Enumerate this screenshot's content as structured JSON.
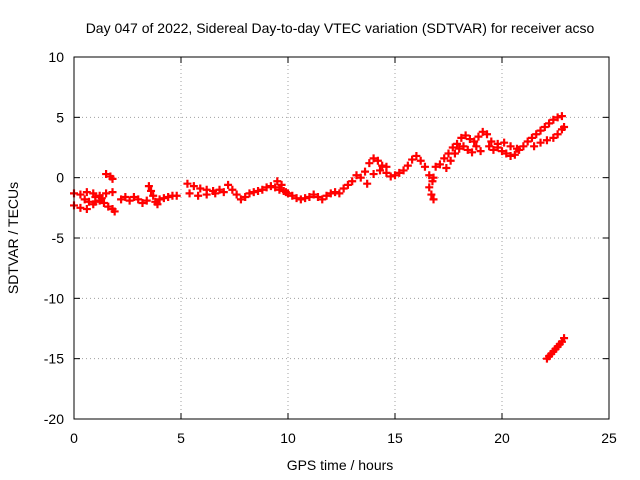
{
  "chart_data": {
    "type": "scatter",
    "title": "Day 047 of 2022, Sidereal Day-to-day VTEC variation (SDTVAR) for receiver acso",
    "xlabel": "GPS time / hours",
    "ylabel": "SDTVAR / TECUs",
    "xlim": [
      0,
      25
    ],
    "ylim": [
      -20,
      10
    ],
    "xticks": [
      0,
      5,
      10,
      15,
      20,
      25
    ],
    "yticks": [
      -20,
      -15,
      -10,
      -5,
      0,
      5,
      10
    ],
    "xtick_labels": [
      "0",
      "5",
      "10",
      "15",
      "20",
      "25"
    ],
    "ytick_labels": [
      "-20",
      "-15",
      "-10",
      "-5",
      "0",
      "5",
      "10"
    ],
    "grid": true,
    "marker": "+",
    "series": [
      {
        "name": "SDTVAR",
        "color": "#ff0000",
        "points": [
          [
            0.0,
            -1.3
          ],
          [
            0.3,
            -1.4
          ],
          [
            0.6,
            -1.2
          ],
          [
            0.9,
            -1.3
          ],
          [
            1.2,
            -1.5
          ],
          [
            1.5,
            -1.3
          ],
          [
            1.8,
            -1.2
          ],
          [
            0.0,
            -2.3
          ],
          [
            0.3,
            -2.5
          ],
          [
            0.6,
            -2.6
          ],
          [
            0.9,
            -2.2
          ],
          [
            1.0,
            -2.0
          ],
          [
            1.2,
            -1.9
          ],
          [
            1.4,
            -2.1
          ],
          [
            1.6,
            -2.4
          ],
          [
            1.8,
            -2.6
          ],
          [
            1.9,
            -2.8
          ],
          [
            0.5,
            -1.8
          ],
          [
            0.7,
            -2.0
          ],
          [
            1.0,
            -1.6
          ],
          [
            1.3,
            -1.7
          ],
          [
            1.5,
            0.3
          ],
          [
            1.7,
            0.1
          ],
          [
            1.8,
            -0.1
          ],
          [
            2.2,
            -1.8
          ],
          [
            2.4,
            -1.6
          ],
          [
            2.6,
            -1.9
          ],
          [
            2.8,
            -1.6
          ],
          [
            3.0,
            -1.8
          ],
          [
            3.2,
            -2.1
          ],
          [
            3.4,
            -1.9
          ],
          [
            3.5,
            -0.7
          ],
          [
            3.6,
            -1.1
          ],
          [
            3.7,
            -1.5
          ],
          [
            3.8,
            -2.0
          ],
          [
            3.9,
            -2.2
          ],
          [
            4.0,
            -1.8
          ],
          [
            4.2,
            -1.7
          ],
          [
            4.4,
            -1.6
          ],
          [
            4.6,
            -1.5
          ],
          [
            4.8,
            -1.5
          ],
          [
            5.3,
            -0.5
          ],
          [
            5.6,
            -0.7
          ],
          [
            5.9,
            -0.9
          ],
          [
            6.2,
            -1.0
          ],
          [
            6.5,
            -1.1
          ],
          [
            6.8,
            -1.0
          ],
          [
            7.0,
            -1.2
          ],
          [
            5.4,
            -1.3
          ],
          [
            5.8,
            -1.5
          ],
          [
            6.2,
            -1.4
          ],
          [
            6.6,
            -1.3
          ],
          [
            7.2,
            -0.6
          ],
          [
            7.4,
            -1.0
          ],
          [
            7.6,
            -1.4
          ],
          [
            7.8,
            -1.8
          ],
          [
            8.0,
            -1.6
          ],
          [
            8.2,
            -1.3
          ],
          [
            8.4,
            -1.2
          ],
          [
            8.6,
            -1.1
          ],
          [
            8.8,
            -1.0
          ],
          [
            9.0,
            -0.8
          ],
          [
            9.2,
            -0.7
          ],
          [
            9.4,
            -0.8
          ],
          [
            9.6,
            -1.0
          ],
          [
            9.8,
            -1.1
          ],
          [
            10.0,
            -1.3
          ],
          [
            10.2,
            -1.5
          ],
          [
            10.4,
            -1.7
          ],
          [
            10.6,
            -1.8
          ],
          [
            10.8,
            -1.7
          ],
          [
            11.0,
            -1.6
          ],
          [
            9.5,
            -0.3
          ],
          [
            9.7,
            -0.6
          ],
          [
            9.9,
            -1.2
          ],
          [
            11.2,
            -1.4
          ],
          [
            11.4,
            -1.6
          ],
          [
            11.6,
            -1.8
          ],
          [
            11.8,
            -1.5
          ],
          [
            12.0,
            -1.3
          ],
          [
            12.2,
            -1.2
          ],
          [
            12.4,
            -1.3
          ],
          [
            12.6,
            -0.9
          ],
          [
            12.8,
            -0.6
          ],
          [
            13.0,
            -0.3
          ],
          [
            13.2,
            0.2
          ],
          [
            13.4,
            0.0
          ],
          [
            13.6,
            0.5
          ],
          [
            13.8,
            1.2
          ],
          [
            14.0,
            1.6
          ],
          [
            14.2,
            1.4
          ],
          [
            14.4,
            1.0
          ],
          [
            14.6,
            0.4
          ],
          [
            14.8,
            0.1
          ],
          [
            13.7,
            -0.5
          ],
          [
            14.0,
            0.3
          ],
          [
            14.3,
            0.6
          ],
          [
            14.6,
            0.9
          ],
          [
            15.0,
            0.2
          ],
          [
            15.2,
            0.4
          ],
          [
            15.4,
            0.6
          ],
          [
            15.6,
            1.0
          ],
          [
            15.8,
            1.5
          ],
          [
            16.0,
            1.8
          ],
          [
            16.2,
            1.4
          ],
          [
            16.4,
            0.9
          ],
          [
            16.6,
            0.2
          ],
          [
            16.8,
            0.0
          ],
          [
            16.6,
            -0.8
          ],
          [
            16.7,
            -1.4
          ],
          [
            16.8,
            -1.8
          ],
          [
            16.75,
            -0.3
          ],
          [
            16.9,
            0.9
          ],
          [
            17.1,
            1.1
          ],
          [
            17.3,
            1.6
          ],
          [
            17.5,
            2.0
          ],
          [
            17.7,
            2.5
          ],
          [
            17.9,
            2.8
          ],
          [
            18.1,
            3.3
          ],
          [
            18.3,
            3.5
          ],
          [
            18.5,
            3.2
          ],
          [
            18.7,
            3.0
          ],
          [
            18.9,
            3.4
          ],
          [
            19.1,
            3.8
          ],
          [
            19.3,
            3.6
          ],
          [
            17.4,
            0.8
          ],
          [
            17.6,
            1.4
          ],
          [
            17.8,
            2.0
          ],
          [
            18.0,
            2.4
          ],
          [
            18.2,
            2.6
          ],
          [
            18.4,
            2.3
          ],
          [
            18.6,
            2.1
          ],
          [
            18.8,
            2.6
          ],
          [
            19.0,
            2.2
          ],
          [
            19.4,
            2.6
          ],
          [
            19.6,
            2.3
          ],
          [
            19.8,
            2.5
          ],
          [
            20.0,
            2.2
          ],
          [
            20.2,
            2.0
          ],
          [
            20.4,
            1.8
          ],
          [
            20.6,
            1.9
          ],
          [
            20.8,
            2.3
          ],
          [
            21.0,
            2.6
          ],
          [
            19.5,
            3.0
          ],
          [
            19.8,
            2.8
          ],
          [
            20.1,
            2.9
          ],
          [
            20.4,
            2.6
          ],
          [
            20.7,
            2.4
          ],
          [
            21.2,
            3.0
          ],
          [
            21.4,
            3.3
          ],
          [
            21.6,
            3.6
          ],
          [
            21.8,
            3.9
          ],
          [
            22.0,
            4.2
          ],
          [
            22.2,
            4.5
          ],
          [
            22.4,
            4.8
          ],
          [
            22.6,
            5.0
          ],
          [
            22.8,
            5.1
          ],
          [
            21.5,
            2.6
          ],
          [
            21.8,
            2.9
          ],
          [
            22.1,
            3.1
          ],
          [
            22.4,
            3.3
          ],
          [
            22.6,
            3.6
          ],
          [
            22.8,
            4.0
          ],
          [
            22.9,
            4.2
          ],
          [
            22.1,
            -15.0
          ],
          [
            22.2,
            -14.8
          ],
          [
            22.3,
            -14.6
          ],
          [
            22.4,
            -14.4
          ],
          [
            22.5,
            -14.2
          ],
          [
            22.6,
            -14.0
          ],
          [
            22.7,
            -13.8
          ],
          [
            22.8,
            -13.6
          ],
          [
            22.9,
            -13.3
          ]
        ]
      }
    ]
  }
}
